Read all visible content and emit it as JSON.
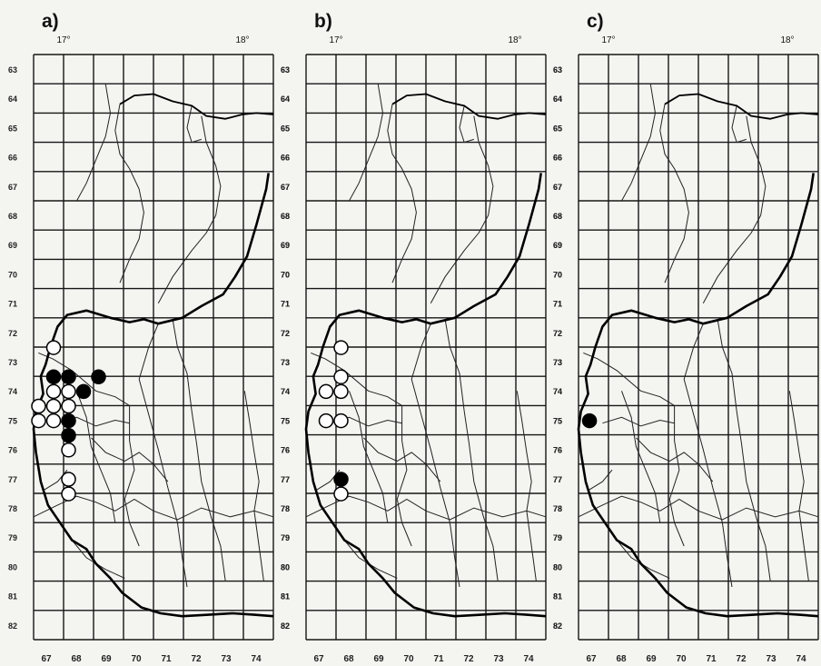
{
  "figure": {
    "row_labels": [
      "63",
      "64",
      "65",
      "66",
      "67",
      "68",
      "69",
      "70",
      "71",
      "72",
      "73",
      "74",
      "75",
      "76",
      "77",
      "78",
      "79",
      "80",
      "81",
      "82"
    ],
    "col_labels": [
      "67",
      "68",
      "69",
      "70",
      "71",
      "72",
      "73",
      "74"
    ],
    "panels": [
      {
        "id": "a",
        "label": "a)",
        "deg_left": "17°",
        "deg_right": "18°",
        "records": [
          {
            "col": 67,
            "row": 72.8,
            "type": "open"
          },
          {
            "col": 67,
            "row": 73.8,
            "type": "filled"
          },
          {
            "col": 67.5,
            "row": 73.8,
            "type": "filled"
          },
          {
            "col": 68.5,
            "row": 73.8,
            "type": "filled"
          },
          {
            "col": 67,
            "row": 74.3,
            "type": "open"
          },
          {
            "col": 67.5,
            "row": 74.3,
            "type": "open"
          },
          {
            "col": 68,
            "row": 74.3,
            "type": "filled"
          },
          {
            "col": 66.5,
            "row": 74.8,
            "type": "open"
          },
          {
            "col": 67,
            "row": 74.8,
            "type": "open"
          },
          {
            "col": 67.5,
            "row": 74.8,
            "type": "open"
          },
          {
            "col": 66.5,
            "row": 75.3,
            "type": "open"
          },
          {
            "col": 67,
            "row": 75.3,
            "type": "open"
          },
          {
            "col": 67.5,
            "row": 75.3,
            "type": "filled"
          },
          {
            "col": 67.5,
            "row": 75.8,
            "type": "filled"
          },
          {
            "col": 67.5,
            "row": 76.3,
            "type": "open"
          },
          {
            "col": 67.5,
            "row": 77.3,
            "type": "open"
          },
          {
            "col": 67.5,
            "row": 77.8,
            "type": "open"
          }
        ]
      },
      {
        "id": "b",
        "label": "b)",
        "deg_left": "17°",
        "deg_right": "18°",
        "records": [
          {
            "col": 67.5,
            "row": 72.8,
            "type": "open"
          },
          {
            "col": 67.5,
            "row": 73.8,
            "type": "open"
          },
          {
            "col": 67,
            "row": 74.3,
            "type": "open"
          },
          {
            "col": 67.5,
            "row": 74.3,
            "type": "open"
          },
          {
            "col": 67,
            "row": 75.3,
            "type": "open"
          },
          {
            "col": 67.5,
            "row": 75.3,
            "type": "open"
          },
          {
            "col": 67.5,
            "row": 77.3,
            "type": "filled"
          },
          {
            "col": 67.5,
            "row": 77.8,
            "type": "open"
          }
        ]
      },
      {
        "id": "c",
        "label": "c)",
        "deg_left": "17°",
        "deg_right": "18°",
        "records": [
          {
            "col": 66.7,
            "row": 75.3,
            "type": "filled"
          }
        ]
      }
    ]
  }
}
